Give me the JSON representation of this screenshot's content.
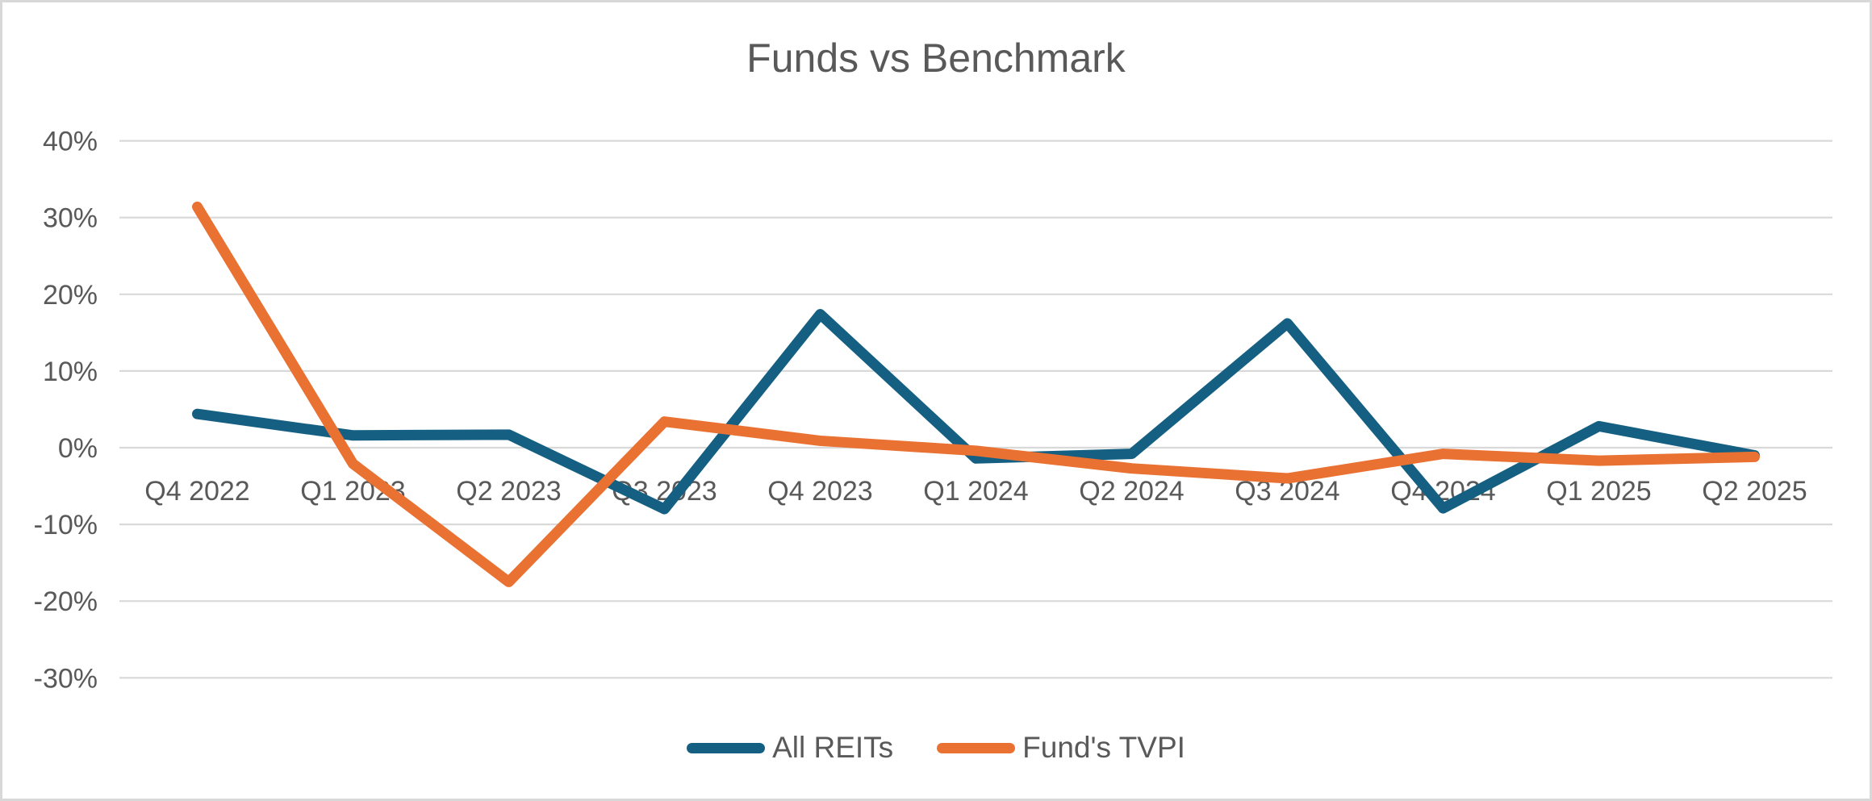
{
  "chart_data": {
    "type": "line",
    "title": "Funds vs Benchmark",
    "categories": [
      "Q4 2022",
      "Q1 2023",
      "Q2 2023",
      "Q3 2023",
      "Q4 2023",
      "Q1 2024",
      "Q2 2024",
      "Q3 2024",
      "Q4 2024",
      "Q1 2025",
      "Q2 2025"
    ],
    "series": [
      {
        "name": "All REITs",
        "color": "#156082",
        "values": [
          4.4,
          1.6,
          1.7,
          -8.0,
          17.4,
          -1.4,
          -0.8,
          16.2,
          -7.9,
          2.8,
          -1.0
        ]
      },
      {
        "name": "Fund's TVPI",
        "color": "#E97132",
        "values": [
          31.4,
          -2.1,
          -17.5,
          3.4,
          0.9,
          -0.4,
          -2.7,
          -4.0,
          -0.8,
          -1.7,
          -1.2
        ]
      }
    ],
    "y_axis": {
      "min": -30,
      "max": 40,
      "step": 10,
      "tick_format": "percent",
      "ticks": [
        {
          "label": "40%",
          "value": 40
        },
        {
          "label": "30%",
          "value": 30
        },
        {
          "label": "20%",
          "value": 20
        },
        {
          "label": "10%",
          "value": 10
        },
        {
          "label": "0%",
          "value": 0
        },
        {
          "label": "-10%",
          "value": -10
        },
        {
          "label": "-20%",
          "value": -20
        },
        {
          "label": "-30%",
          "value": -30
        }
      ]
    },
    "xlabel": "",
    "ylabel": "",
    "grid": true,
    "legend_position": "bottom-center"
  },
  "colors": {
    "background": "#FFFFFF",
    "border": "#D8D8D8",
    "gridline": "#D9D9D9",
    "text": "#595959"
  }
}
